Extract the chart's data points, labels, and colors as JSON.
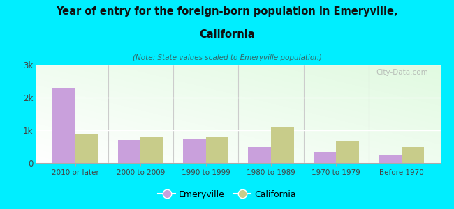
{
  "title_line1": "Year of entry for the foreign-born population in Emeryville,",
  "title_line2": "California",
  "subtitle": "(Note: State values scaled to Emeryville population)",
  "categories": [
    "2010 or later",
    "2000 to 2009",
    "1990 to 1999",
    "1980 to 1989",
    "1970 to 1979",
    "Before 1970"
  ],
  "emeryville": [
    2300,
    700,
    750,
    500,
    350,
    250
  ],
  "california": [
    900,
    800,
    800,
    1100,
    650,
    500
  ],
  "emeryville_color": "#c9a0dc",
  "california_color": "#c8cc8a",
  "background_color": "#00eeff",
  "ylim": [
    0,
    3000
  ],
  "yticks": [
    0,
    1000,
    2000,
    3000
  ],
  "ytick_labels": [
    "0",
    "1k",
    "2k",
    "3k"
  ],
  "bar_width": 0.35,
  "legend_emeryville": "Emeryville",
  "legend_california": "California",
  "watermark": "City-Data.com"
}
